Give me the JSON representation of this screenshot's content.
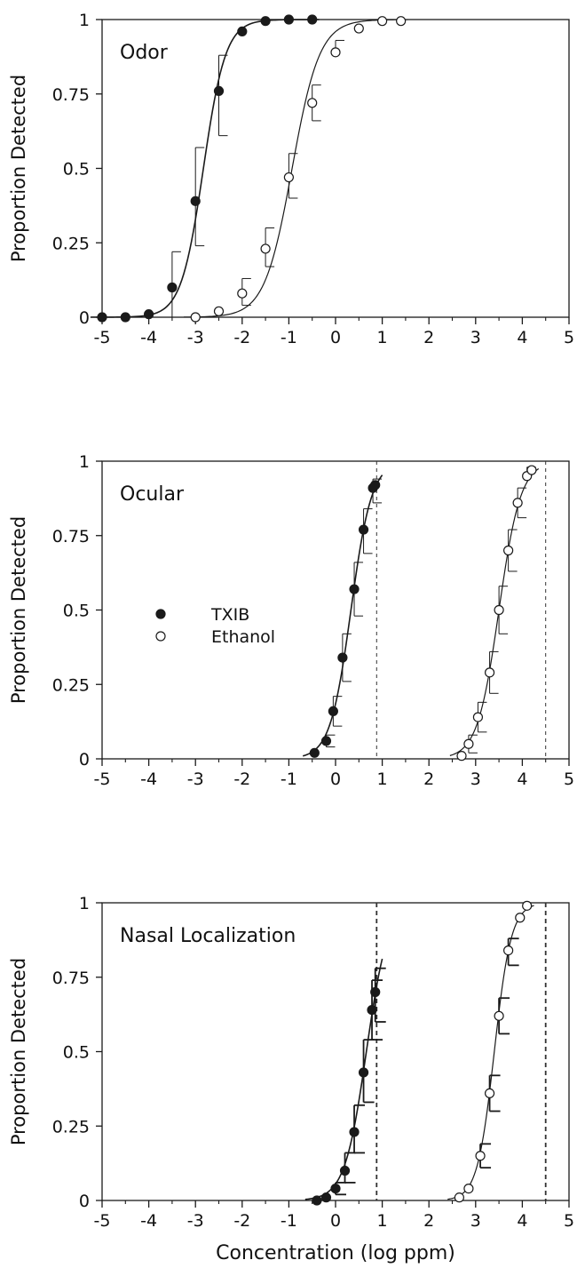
{
  "chart_data": [
    {
      "type": "scatter",
      "title": "",
      "panel_label": "Odor",
      "xlabel": "",
      "ylabel": "Proportion Detected",
      "xlim": [
        -5,
        5
      ],
      "ylim": [
        0,
        1
      ],
      "xticks": [
        "-5",
        "-4",
        "-3",
        "-2",
        "-1",
        "0",
        "1",
        "2",
        "3",
        "4",
        "5"
      ],
      "yticks": [
        "0",
        "0.25",
        "0.5",
        "0.75",
        "1"
      ],
      "grid": false,
      "series": [
        {
          "name": "TXIB",
          "marker": "filled-circle",
          "x": [
            -5.0,
            -4.5,
            -4.0,
            -3.5,
            -3.0,
            -2.5,
            -2.0,
            -1.5,
            -1.0,
            -0.5
          ],
          "y": [
            0.0,
            0.0,
            0.01,
            0.1,
            0.39,
            0.76,
            0.96,
            0.995,
            1.0,
            1.0
          ],
          "err_low": [
            0.0,
            0.0,
            0.0,
            0.1,
            0.15,
            0.15,
            0.0,
            0.0,
            0.0,
            0.0
          ],
          "err_high": [
            0.0,
            0.0,
            0.0,
            0.12,
            0.18,
            0.12,
            0.0,
            0.0,
            0.0,
            0.0
          ],
          "fit_x50": -2.83,
          "fit_slope": 4.2
        },
        {
          "name": "Ethanol",
          "marker": "open-circle",
          "x": [
            -3.0,
            -2.5,
            -2.0,
            -1.5,
            -1.0,
            -0.5,
            0.0,
            0.5,
            1.0,
            1.4
          ],
          "y": [
            0.0,
            0.02,
            0.08,
            0.23,
            0.47,
            0.72,
            0.89,
            0.97,
            0.995,
            0.995
          ],
          "err_low": [
            0.0,
            0.0,
            0.04,
            0.06,
            0.07,
            0.06,
            0.0,
            0.0,
            0.0,
            0.0
          ],
          "err_high": [
            0.0,
            0.0,
            0.05,
            0.07,
            0.08,
            0.06,
            0.04,
            0.0,
            0.0,
            0.0
          ],
          "fit_x50": -0.93,
          "fit_slope": 3.4
        }
      ],
      "reference_lines_x": []
    },
    {
      "type": "scatter",
      "title": "",
      "panel_label": "Ocular",
      "xlabel": "",
      "ylabel": "Proportion Detected",
      "xlim": [
        -5,
        5
      ],
      "ylim": [
        0,
        1
      ],
      "xticks": [
        "-5",
        "-4",
        "-3",
        "-2",
        "-1",
        "0",
        "1",
        "2",
        "3",
        "4",
        "5"
      ],
      "yticks": [
        "0",
        "0.25",
        "0.5",
        "0.75",
        "1"
      ],
      "grid": false,
      "legend": {
        "position": "left-center",
        "entries": [
          "TXIB",
          "Ethanol"
        ]
      },
      "series": [
        {
          "name": "TXIB",
          "marker": "filled-circle",
          "x": [
            -0.45,
            -0.2,
            -0.05,
            0.15,
            0.4,
            0.6,
            0.8,
            0.85
          ],
          "y": [
            0.02,
            0.06,
            0.16,
            0.34,
            0.57,
            0.77,
            0.91,
            0.92
          ],
          "err_low": [
            0.0,
            0.02,
            0.05,
            0.08,
            0.09,
            0.08,
            0.05,
            0.0
          ],
          "err_high": [
            0.0,
            0.02,
            0.05,
            0.08,
            0.09,
            0.07,
            0.03,
            0.0
          ],
          "fit_x50": 0.33,
          "fit_slope": 4.5
        },
        {
          "name": "Ethanol",
          "marker": "open-circle",
          "x": [
            2.7,
            2.85,
            3.05,
            3.3,
            3.5,
            3.7,
            3.9,
            4.1,
            4.2
          ],
          "y": [
            0.01,
            0.05,
            0.14,
            0.29,
            0.5,
            0.7,
            0.86,
            0.95,
            0.97
          ],
          "err_low": [
            0.0,
            0.03,
            0.05,
            0.07,
            0.08,
            0.07,
            0.05,
            0.0,
            0.0
          ],
          "err_high": [
            0.0,
            0.03,
            0.05,
            0.07,
            0.08,
            0.07,
            0.05,
            0.03,
            0.0
          ],
          "fit_x50": 3.5,
          "fit_slope": 4.3
        }
      ],
      "reference_lines_x": [
        0.88,
        4.5
      ]
    },
    {
      "type": "scatter",
      "title": "",
      "panel_label": "Nasal  Localization",
      "xlabel": "Concentration (log ppm)",
      "ylabel": "Proportion Detected",
      "xlim": [
        -5,
        5
      ],
      "ylim": [
        0,
        1
      ],
      "xticks": [
        "-5",
        "-4",
        "-3",
        "-2",
        "-1",
        "0",
        "1",
        "2",
        "3",
        "4",
        "5"
      ],
      "yticks": [
        "0",
        "0.25",
        "0.5",
        "0.75",
        "1"
      ],
      "grid": false,
      "series": [
        {
          "name": "TXIB",
          "marker": "filled-circle",
          "x": [
            -0.4,
            -0.2,
            0.0,
            0.2,
            0.4,
            0.6,
            0.78,
            0.85
          ],
          "y": [
            0.0,
            0.01,
            0.04,
            0.1,
            0.23,
            0.43,
            0.64,
            0.7
          ],
          "err_low": [
            0.0,
            0.0,
            0.02,
            0.04,
            0.07,
            0.1,
            0.1,
            0.1
          ],
          "err_high": [
            0.0,
            0.0,
            0.02,
            0.06,
            0.09,
            0.11,
            0.1,
            0.08
          ],
          "fit_x50": 0.66,
          "fit_slope": 4.3
        },
        {
          "name": "Ethanol",
          "marker": "open-circle",
          "x": [
            2.65,
            2.85,
            3.1,
            3.3,
            3.5,
            3.7,
            3.95,
            4.1
          ],
          "y": [
            0.01,
            0.04,
            0.15,
            0.36,
            0.62,
            0.84,
            0.95,
            0.99
          ],
          "err_low": [
            0.0,
            0.0,
            0.04,
            0.06,
            0.06,
            0.05,
            0.0,
            0.0
          ],
          "err_high": [
            0.0,
            0.0,
            0.04,
            0.06,
            0.06,
            0.04,
            0.0,
            0.0
          ],
          "fit_x50": 3.4,
          "fit_slope": 5.5
        }
      ],
      "reference_lines_x": [
        0.88,
        4.5
      ]
    }
  ]
}
